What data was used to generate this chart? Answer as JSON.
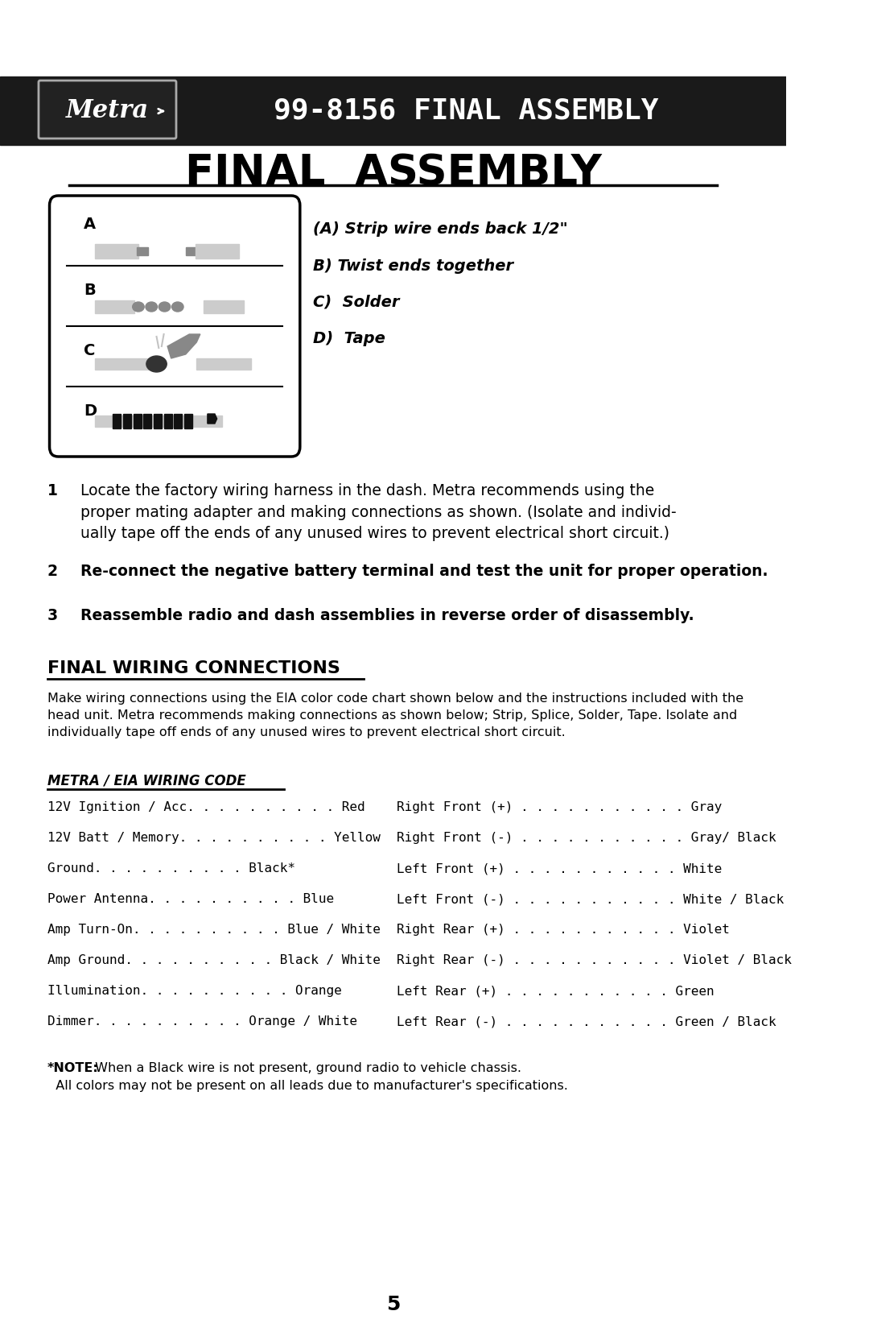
{
  "bg_color": "#ffffff",
  "header_bg": "#1a1a1a",
  "header_text": "99-8156 FINAL ASSEMBLY",
  "page_title": "FINAL  ASSEMBLY",
  "assembly_steps": [
    "(A) Strip wire ends back 1/2\"",
    "B) Twist ends together",
    "C)  Solder",
    "D)  Tape"
  ],
  "diagram_labels": [
    "A",
    "B",
    "C",
    "D"
  ],
  "step1": "Locate the factory wiring harness in the dash. Metra recommends using the proper mating adapter and making connections as shown. (Isolate and individ-ually tape off the ends of any unused wires to prevent electrical short circuit.)",
  "step2": "Re-connect the negative battery terminal and test the unit for proper operation.",
  "step3": "Reassemble radio and dash assemblies in reverse order of disassembly.",
  "wiring_title": "FINAL WIRING CONNECTIONS",
  "wiring_intro": "Make wiring connections using the EIA color code chart shown below and the instructions included with the head unit. Metra recommends making connections as shown below; Strip, Splice, Solder, Tape. Isolate and individually tape off ends of any unused wires to prevent electrical short circuit.",
  "metra_eia_title": "METRA / EIA WIRING CODE",
  "left_wiring": [
    [
      "12V Ignition / Acc",
      "Red"
    ],
    [
      "12V Batt / Memory",
      "Yellow"
    ],
    [
      "Ground",
      "Black*"
    ],
    [
      "Power Antenna",
      "Blue"
    ],
    [
      "Amp Turn-On",
      "Blue / White"
    ],
    [
      "Amp Ground",
      "Black / White"
    ],
    [
      "Illumination",
      "Orange"
    ],
    [
      "Dimmer",
      "Orange / White"
    ]
  ],
  "right_wiring": [
    [
      "Right Front (+)",
      "Gray"
    ],
    [
      "Right Front (-)",
      "Gray/ Black"
    ],
    [
      "Left Front (+)",
      "White"
    ],
    [
      "Left Front (-)",
      "White / Black"
    ],
    [
      "Right Rear (+)",
      "Violet"
    ],
    [
      "Right Rear (-)",
      "Violet / Black"
    ],
    [
      "Left Rear (+)",
      "Green"
    ],
    [
      "Left Rear (-)",
      "Green / Black"
    ]
  ],
  "note_bold": "*NOTE:",
  "note_text": " When a Black wire is not present, ground radio to vehicle chassis.\n  All colors may not be present on all leads due to manufacturer's specifications.",
  "page_number": "5"
}
